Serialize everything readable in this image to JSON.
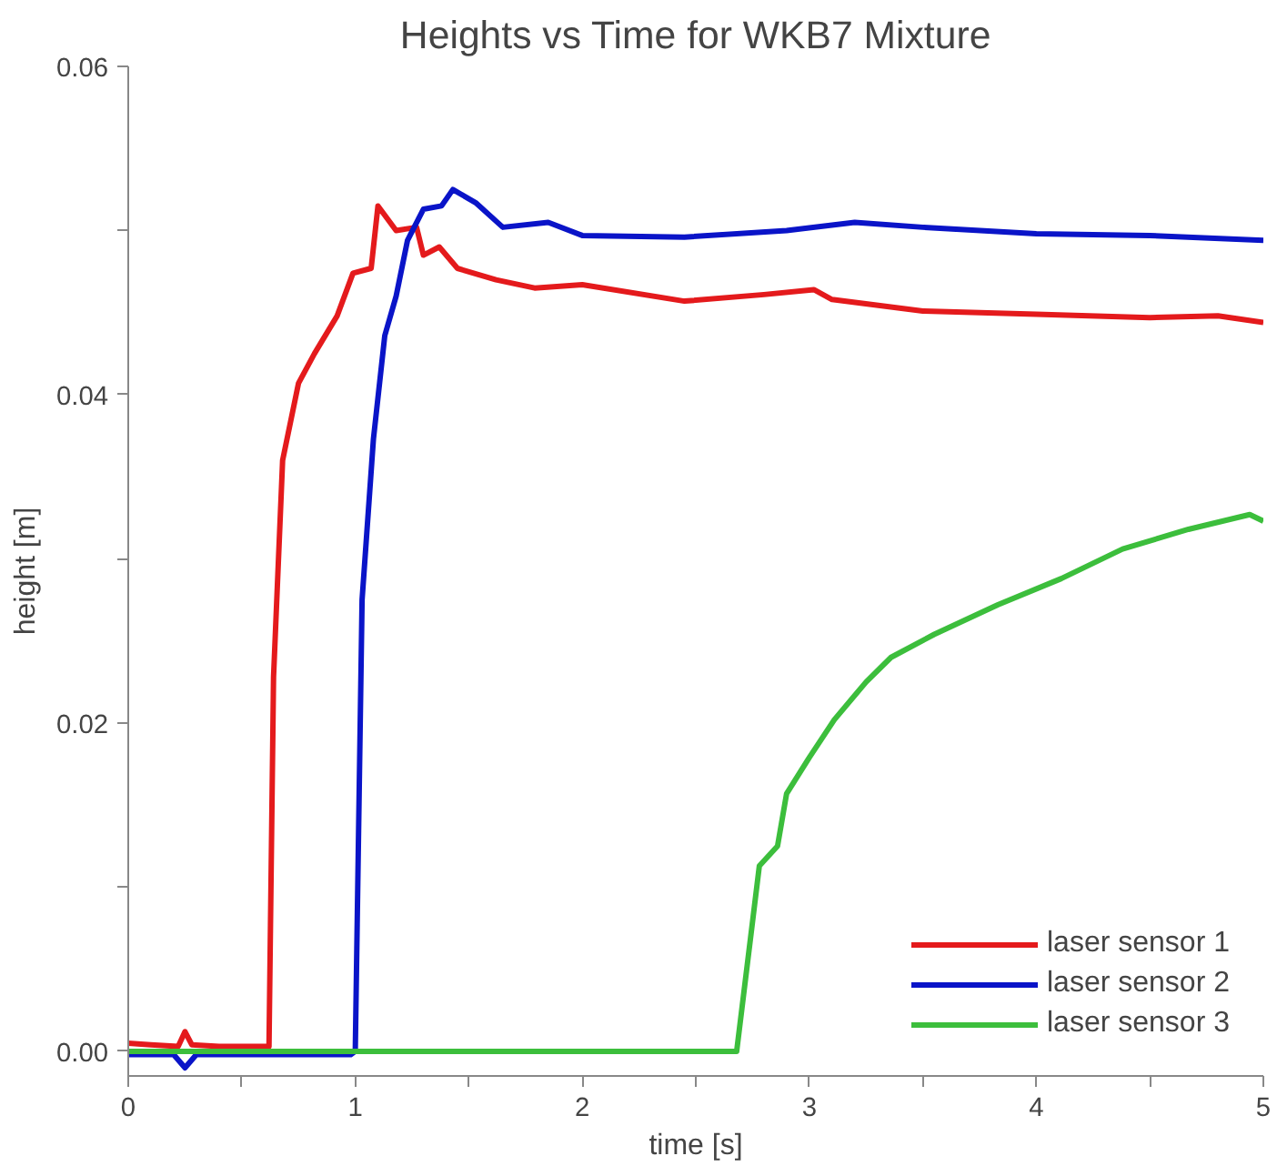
{
  "chart_data": {
    "type": "line",
    "title": "Heights vs Time for WKB7 Mixture",
    "xlabel": "time [s]",
    "ylabel": "height [m]",
    "xlim": [
      0,
      5
    ],
    "ylim": [
      -0.0015,
      0.06
    ],
    "xticks": [
      0,
      {
        "value": 0.5,
        "label": null
      },
      1,
      {
        "value": 1.5,
        "label": null
      },
      2,
      {
        "value": 2.5,
        "label": null
      },
      3,
      {
        "value": 3.5,
        "label": null
      },
      4,
      {
        "value": 4.5,
        "label": null
      },
      5
    ],
    "yticks": [
      {
        "value": 0,
        "label": "0.00"
      },
      {
        "value": 0.01,
        "label": null
      },
      {
        "value": 0.02,
        "label": "0.02"
      },
      {
        "value": 0.03,
        "label": null
      },
      {
        "value": 0.04,
        "label": "0.04"
      },
      {
        "value": 0.05,
        "label": null
      },
      {
        "value": 0.06,
        "label": "0.06"
      }
    ],
    "grid": false,
    "legend": "bottom right",
    "marker": "none",
    "line_style": "solid",
    "series": [
      {
        "name": "laser sensor 1",
        "color": "#e41a1c",
        "x": [
          0,
          0.1,
          0.22,
          0.25,
          0.28,
          0.4,
          0.6,
          0.62,
          0.64,
          0.68,
          0.75,
          0.82,
          0.92,
          0.99,
          1.07,
          1.1,
          1.18,
          1.27,
          1.3,
          1.37,
          1.45,
          1.62,
          1.79,
          2.0,
          2.45,
          2.8,
          3.02,
          3.1,
          3.5,
          4.0,
          4.5,
          4.8,
          5.0
        ],
        "values": [
          0.0005,
          0.0004,
          0.0003,
          0.0012,
          0.0004,
          0.0003,
          0.0003,
          0.0003,
          0.0228,
          0.036,
          0.0407,
          0.0425,
          0.0448,
          0.0474,
          0.0477,
          0.0515,
          0.05,
          0.0502,
          0.0485,
          0.049,
          0.0477,
          0.047,
          0.0465,
          0.0467,
          0.0457,
          0.0461,
          0.0464,
          0.0458,
          0.0451,
          0.0449,
          0.0447,
          0.0448,
          0.0444
        ]
      },
      {
        "name": "laser sensor 2",
        "color": "#0a14c8",
        "x": [
          0,
          0.2,
          0.25,
          0.3,
          0.6,
          0.98,
          1.0,
          1.03,
          1.08,
          1.13,
          1.18,
          1.23,
          1.3,
          1.38,
          1.43,
          1.53,
          1.65,
          1.85,
          2.0,
          2.45,
          2.9,
          3.2,
          3.5,
          4.0,
          4.5,
          5.0
        ],
        "values": [
          -0.0002,
          -0.0002,
          -0.001,
          -0.0002,
          -0.0002,
          -0.0002,
          0.0,
          0.0275,
          0.0373,
          0.0436,
          0.046,
          0.0494,
          0.0513,
          0.0515,
          0.0525,
          0.0517,
          0.0502,
          0.0505,
          0.0497,
          0.0496,
          0.05,
          0.0505,
          0.0502,
          0.0498,
          0.0497,
          0.0494
        ]
      },
      {
        "name": "laser sensor 3",
        "color": "#3cbe3c",
        "x": [
          0,
          1.0,
          2.0,
          2.68,
          2.78,
          2.86,
          2.9,
          3.0,
          3.11,
          3.25,
          3.36,
          3.55,
          3.83,
          4.11,
          4.38,
          4.67,
          4.94,
          5.0
        ],
        "values": [
          0.0,
          0.0,
          0.0,
          0.0,
          0.0113,
          0.0125,
          0.0157,
          0.0179,
          0.0202,
          0.0225,
          0.024,
          0.0254,
          0.0272,
          0.0288,
          0.0306,
          0.0318,
          0.0327,
          0.0323
        ]
      }
    ]
  }
}
